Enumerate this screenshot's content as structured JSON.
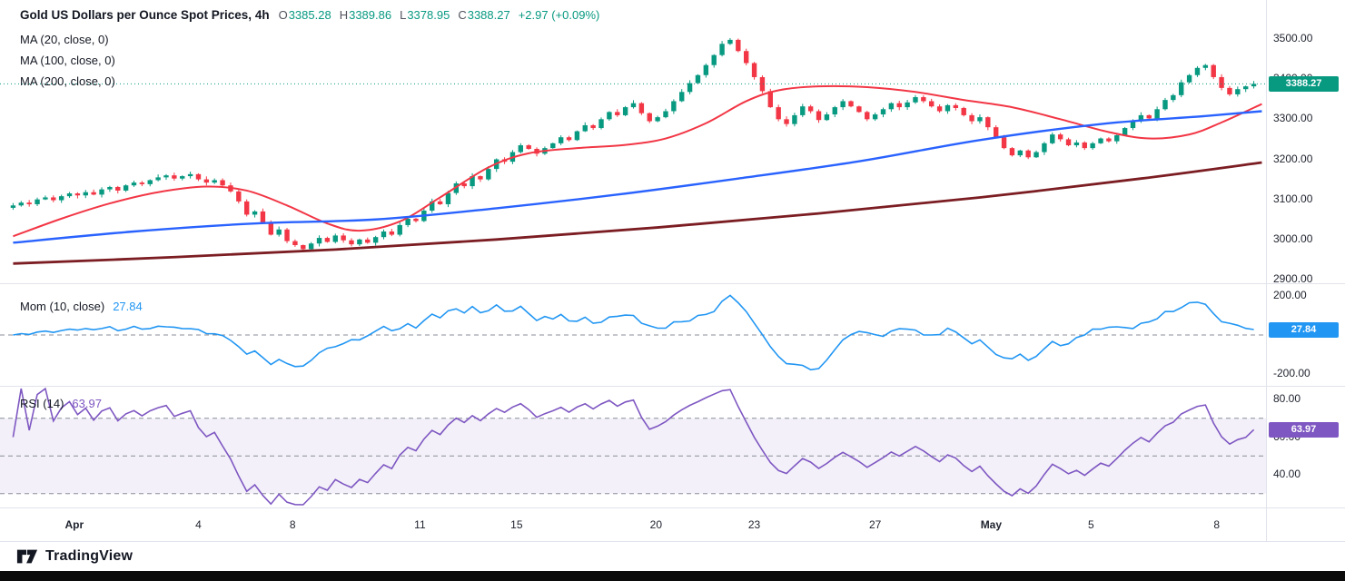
{
  "header": {
    "title": "Gold US Dollars per Ounce Spot Prices, 4h",
    "ohlc": [
      {
        "label": "O",
        "value": "3385.28"
      },
      {
        "label": "H",
        "value": "3389.86"
      },
      {
        "label": "L",
        "value": "3378.95"
      },
      {
        "label": "C",
        "value": "3388.27"
      }
    ],
    "change": "+2.97 (+0.09%)",
    "ma_labels": [
      "MA (20, close, 0)",
      "MA (100, close, 0)",
      "MA (200, close, 0)"
    ]
  },
  "momentum": {
    "label": "Mom (10, close)",
    "value": "27.84"
  },
  "rsi": {
    "label": "RSI (14)",
    "value": "63.97"
  },
  "badges": {
    "price": "3388.27",
    "mom": "27.84",
    "rsi": "63.97"
  },
  "watermark": {
    "brand": "TradingView"
  },
  "colors": {
    "up": "#089981",
    "down": "#f23645",
    "ma20": "#f23645",
    "ma100": "#2962ff",
    "ma200": "#7b1d22",
    "mom": "#2196f3",
    "mom_badge": "#2196f3",
    "rsi": "#7e57c2",
    "rsi_badge": "#7e57c2",
    "price_badge": "#089981",
    "grid": "#e0e3eb",
    "band": "rgba(126,87,194,0.09)",
    "dash": "#8a8e99",
    "text": "#131722"
  },
  "chart_data": [
    {
      "type": "candlestick",
      "title": "Gold US Dollars per Ounce Spot Prices",
      "timeframe": "4h",
      "last_price": 3388.27,
      "ohlc_last": {
        "open": 3385.28,
        "high": 3389.86,
        "low": 3378.95,
        "close": 3388.27,
        "change": 2.97,
        "change_pct": 0.09
      },
      "ylim": [
        2890,
        3520
      ],
      "y_ticks": [
        3500,
        3400,
        3300,
        3200,
        3100,
        3000,
        2900
      ],
      "x_ticks": [
        {
          "label": "Apr",
          "bar": 7.6,
          "bold": true
        },
        {
          "label": "4",
          "bar": 23
        },
        {
          "label": "8",
          "bar": 34.7
        },
        {
          "label": "11",
          "bar": 50.5
        },
        {
          "label": "15",
          "bar": 62.5
        },
        {
          "label": "20",
          "bar": 79.8
        },
        {
          "label": "23",
          "bar": 92
        },
        {
          "label": "27",
          "bar": 107
        },
        {
          "label": "May",
          "bar": 121.4,
          "bold": true
        },
        {
          "label": "5",
          "bar": 133.8
        },
        {
          "label": "8",
          "bar": 149.4
        }
      ],
      "closes": [
        3085,
        3092,
        3088,
        3100,
        3105,
        3098,
        3108,
        3115,
        3110,
        3118,
        3112,
        3125,
        3131,
        3122,
        3135,
        3142,
        3138,
        3148,
        3155,
        3160,
        3152,
        3158,
        3163,
        3150,
        3142,
        3148,
        3135,
        3120,
        3095,
        3062,
        3070,
        3042,
        3012,
        3025,
        2996,
        2986,
        2976,
        2990,
        3004,
        2994,
        3010,
        2998,
        2988,
        3000,
        2992,
        3006,
        3020,
        3012,
        3036,
        3052,
        3046,
        3072,
        3095,
        3088,
        3116,
        3140,
        3133,
        3158,
        3150,
        3176,
        3200,
        3194,
        3218,
        3235,
        3226,
        3214,
        3228,
        3240,
        3255,
        3248,
        3270,
        3285,
        3278,
        3300,
        3318,
        3310,
        3330,
        3340,
        3315,
        3295,
        3305,
        3320,
        3345,
        3368,
        3390,
        3410,
        3435,
        3460,
        3488,
        3498,
        3470,
        3440,
        3405,
        3370,
        3330,
        3300,
        3288,
        3310,
        3332,
        3320,
        3298,
        3312,
        3330,
        3345,
        3332,
        3318,
        3300,
        3312,
        3325,
        3340,
        3330,
        3342,
        3355,
        3345,
        3332,
        3320,
        3335,
        3328,
        3310,
        3295,
        3305,
        3280,
        3255,
        3228,
        3210,
        3222,
        3205,
        3218,
        3240,
        3262,
        3250,
        3235,
        3242,
        3228,
        3240,
        3252,
        3245,
        3260,
        3278,
        3295,
        3310,
        3302,
        3325,
        3348,
        3360,
        3392,
        3410,
        3428,
        3435,
        3405,
        3378,
        3362,
        3375,
        3382,
        3388.27
      ],
      "overlays": [
        {
          "id": "ma20",
          "label": "MA (20, close, 0)",
          "period": 20,
          "color": "#f23645",
          "width": 2,
          "anchors": [
            [
              0,
              3008
            ],
            [
              6,
              3052
            ],
            [
              12,
              3090
            ],
            [
              18,
              3118
            ],
            [
              24,
              3132
            ],
            [
              29,
              3122
            ],
            [
              34,
              3085
            ],
            [
              39,
              3040
            ],
            [
              43,
              3022
            ],
            [
              48,
              3045
            ],
            [
              53,
              3105
            ],
            [
              59,
              3180
            ],
            [
              64,
              3215
            ],
            [
              70,
              3228
            ],
            [
              76,
              3236
            ],
            [
              81,
              3252
            ],
            [
              86,
              3290
            ],
            [
              91,
              3345
            ],
            [
              95,
              3372
            ],
            [
              100,
              3382
            ],
            [
              106,
              3380
            ],
            [
              112,
              3368
            ],
            [
              118,
              3348
            ],
            [
              124,
              3330
            ],
            [
              130,
              3300
            ],
            [
              136,
              3268
            ],
            [
              141,
              3252
            ],
            [
              146,
              3262
            ],
            [
              150,
              3292
            ],
            [
              155,
              3338
            ]
          ]
        },
        {
          "id": "ma100",
          "label": "MA (100, close, 0)",
          "period": 100,
          "color": "#2962ff",
          "width": 2.4,
          "anchors": [
            [
              0,
              2992
            ],
            [
              15,
              3020
            ],
            [
              30,
              3040
            ],
            [
              45,
              3050
            ],
            [
              60,
              3078
            ],
            [
              75,
              3112
            ],
            [
              90,
              3152
            ],
            [
              105,
              3195
            ],
            [
              120,
              3248
            ],
            [
              135,
              3288
            ],
            [
              148,
              3308
            ],
            [
              155,
              3320
            ]
          ]
        },
        {
          "id": "ma200",
          "label": "MA (200, close, 0)",
          "period": 200,
          "color": "#7b1d22",
          "width": 2.8,
          "anchors": [
            [
              0,
              2940
            ],
            [
              20,
              2956
            ],
            [
              40,
              2975
            ],
            [
              60,
              3000
            ],
            [
              80,
              3030
            ],
            [
              100,
              3065
            ],
            [
              120,
              3105
            ],
            [
              140,
              3152
            ],
            [
              155,
              3192
            ]
          ]
        }
      ]
    },
    {
      "type": "line",
      "name": "Mom (10, close)",
      "period": 10,
      "last_value": 27.84,
      "y_ticks": [
        200,
        -200
      ],
      "ylim": [
        -256,
        260
      ],
      "zero_line": true
    },
    {
      "type": "line",
      "name": "RSI (14)",
      "period": 14,
      "last_value": 63.97,
      "y_ticks": [
        80,
        60,
        40
      ],
      "bands": [
        70,
        50,
        30
      ],
      "ylim": [
        22,
        87
      ]
    }
  ]
}
